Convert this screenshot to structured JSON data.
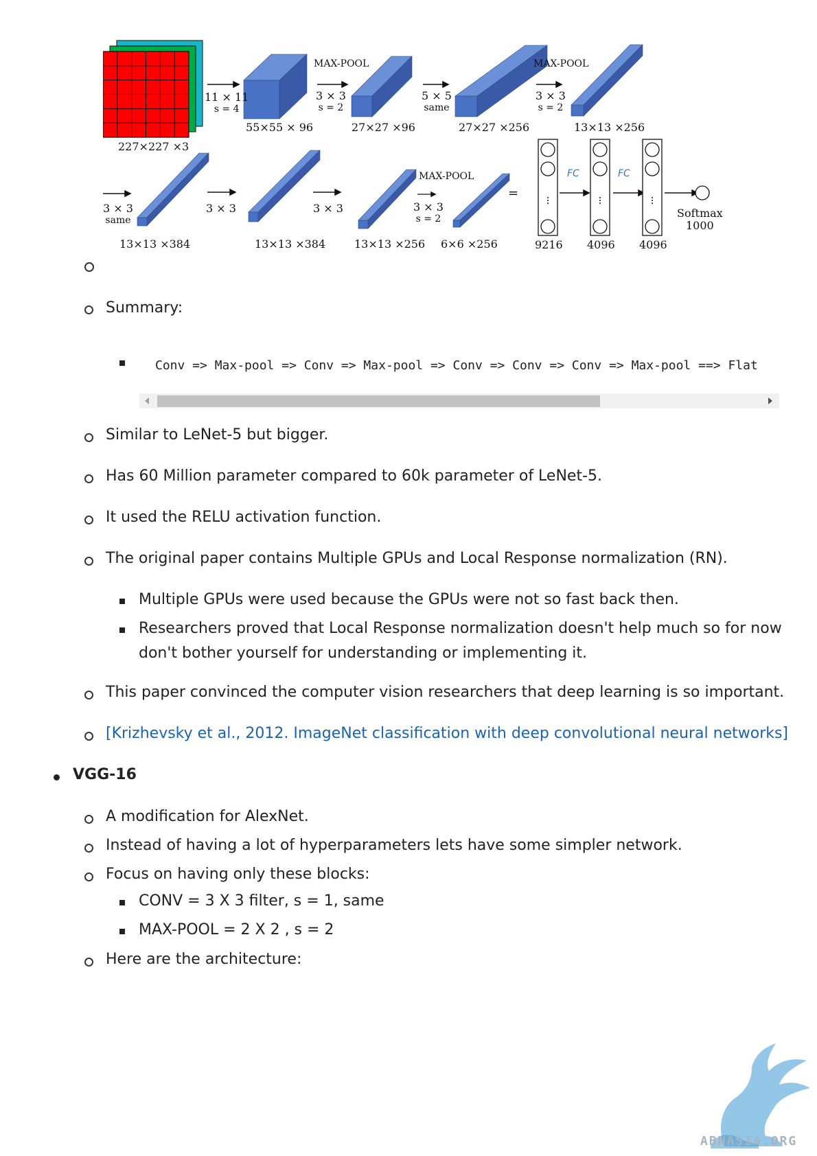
{
  "figure": {
    "input_label": "227×227 ×3",
    "ops": {
      "conv1": [
        "11 × 11",
        "s = 4"
      ],
      "pool1": [
        "MAX-POOL",
        "3 × 3",
        "s = 2"
      ],
      "conv2": [
        "5 × 5",
        "same"
      ],
      "pool2": [
        "MAX-POOL",
        "3 × 3",
        "s = 2"
      ],
      "conv3": [
        "3 × 3",
        "same"
      ],
      "conv4": [
        "3 × 3"
      ],
      "conv5": [
        "3 × 3"
      ],
      "pool3": [
        "MAX-POOL",
        "3 × 3",
        "s = 2"
      ]
    },
    "volume_labels": [
      "55×55 × 96",
      "27×27 ×96",
      "27×27 ×256",
      "13×13 ×256",
      "13×13 ×384",
      "13×13 ×384",
      "13×13 ×256",
      "6×6 ×256"
    ],
    "fc_labels": [
      "9216",
      "4096",
      "4096"
    ],
    "fc_handwritten": [
      "FC",
      "FC"
    ],
    "equals": "=",
    "softmax": [
      "Softmax",
      "1000"
    ],
    "colors": {
      "block_front": "#4a72c4",
      "block_top": "#6a90d8",
      "block_side": "#3a5aa8",
      "input_red": "#ff0000",
      "input_green": "#00aa44",
      "input_teal": "#19b5c8",
      "link": "#1a62b3"
    }
  },
  "summary_label": "Summary:",
  "code": "Conv => Max-pool => Conv => Max-pool => Conv => Conv => Conv => Max-pool ==> Flat",
  "points": [
    "Similar to LeNet-5 but bigger.",
    "Has 60 Million parameter compared to 60k parameter of LeNet-5.",
    "It used the RELU activation function.",
    "The original paper contains Multiple GPUs and Local Response normalization (RN)."
  ],
  "subpoints": [
    "Multiple GPUs were used because the GPUs were not so fast back then.",
    "Researchers proved that Local Response normalization doesn't help much so for now",
    "don't bother yourself for understanding or implementing it."
  ],
  "convinced": "This paper convinced the computer vision researchers that deep learning is so important.",
  "reference": "[Krizhevsky et al., 2012. ImageNet classification with deep convolutional neural networks]",
  "vgg": {
    "title": "VGG-16",
    "items": [
      "A modification for AlexNet.",
      "Instead of having a lot of hyperparameters lets have some simpler network.",
      "Focus on having only these blocks:"
    ],
    "blocks": [
      "CONV = 3 X 3 filter, s = 1, same",
      "MAX-POOL = 2 X 2 , s = 2"
    ],
    "last": "Here are the architecture:"
  },
  "watermark": "ABNASIA.ORG"
}
